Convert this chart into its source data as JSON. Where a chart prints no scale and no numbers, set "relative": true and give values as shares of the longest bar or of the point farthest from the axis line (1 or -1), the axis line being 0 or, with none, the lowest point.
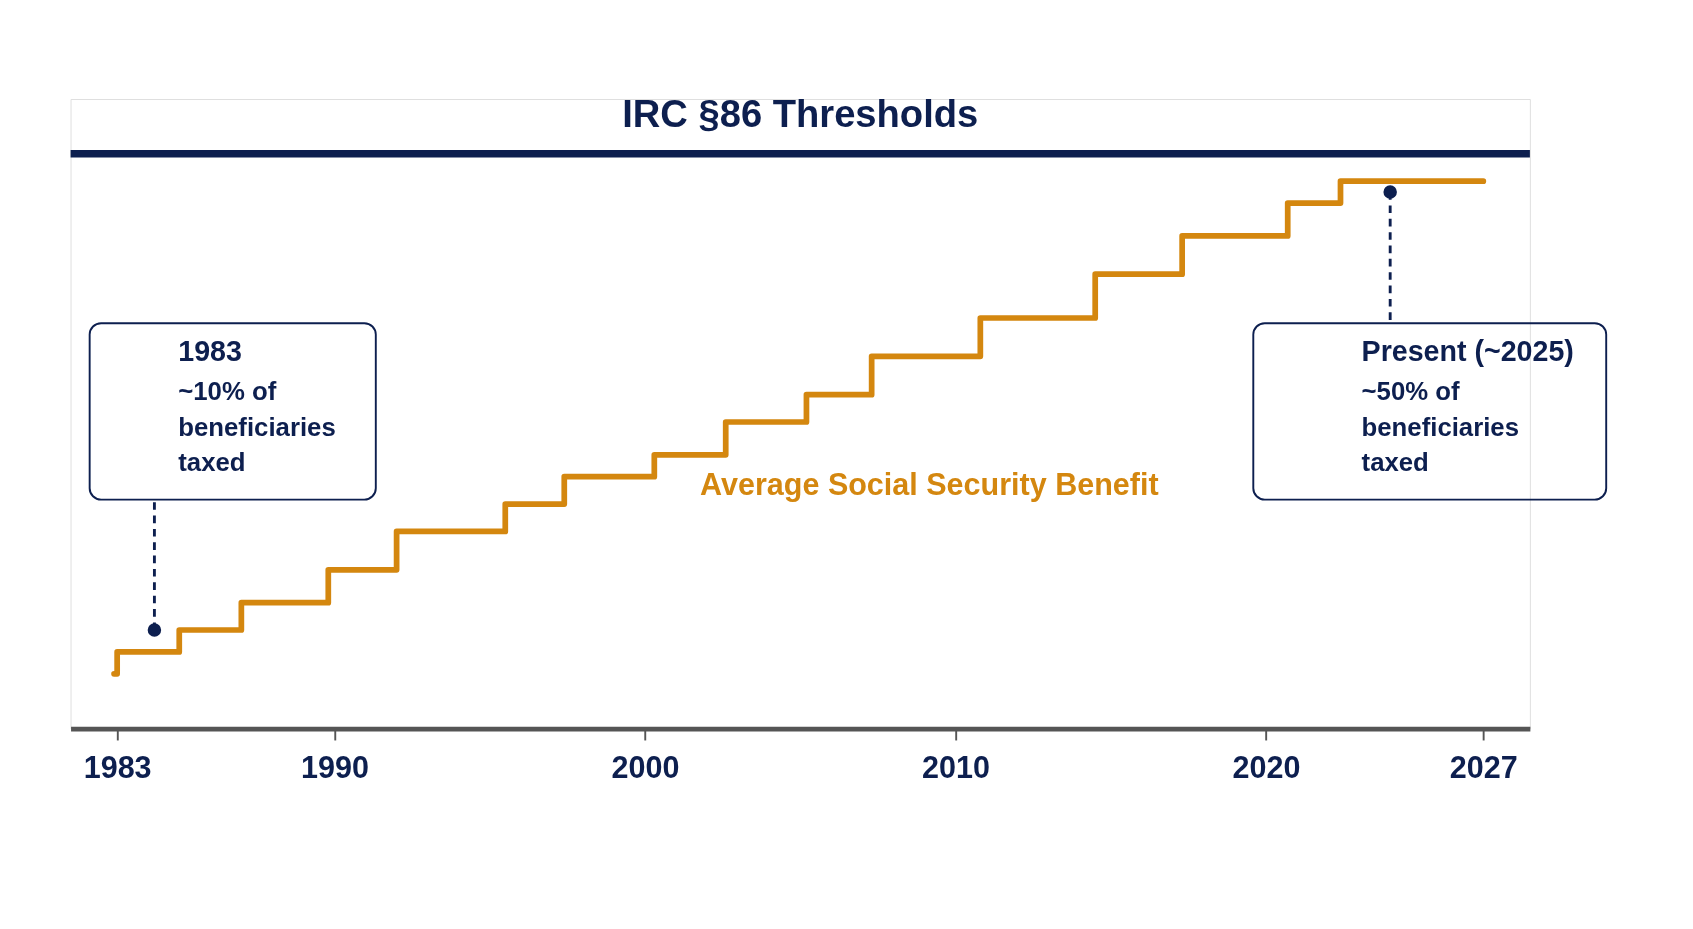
{
  "chart_data": {
    "type": "step",
    "relative": true,
    "x": [
      1982.9,
      1983.0,
      1985.0,
      1987.0,
      1989.8,
      1992.0,
      1995.5,
      1997.4,
      2000.3,
      2002.6,
      2005.2,
      2007.3,
      2010.8,
      2014.5,
      2017.3,
      2020.7,
      2022.4,
      2027
    ],
    "series": [
      {
        "name": "Average Social Security Benefit",
        "color": "#d4870f",
        "values": [
          0.1,
          0.14,
          0.18,
          0.23,
          0.29,
          0.36,
          0.41,
          0.46,
          0.5,
          0.56,
          0.61,
          0.68,
          0.75,
          0.83,
          0.9,
          0.96,
          1,
          1
        ]
      }
    ],
    "xlim": [
      1981.5,
      2028.5
    ],
    "xticks": [
      1983,
      1990,
      2000,
      2010,
      2020,
      2027
    ],
    "ref_lines": [
      {
        "axis": "y",
        "value": 1.05,
        "label": "IRC §86 Thresholds",
        "color": "#0d1f4f"
      }
    ],
    "annotations": [
      {
        "text": "1983\n~10% of\nbeneficiaries\ntaxed",
        "x": 1984.2,
        "y": 0.18
      },
      {
        "text": "Present (~2025)\n~50% of\nbeneficiaries\ntaxed",
        "x": 2024.0,
        "y": 0.98
      }
    ],
    "grid": false,
    "legend": false
  }
}
